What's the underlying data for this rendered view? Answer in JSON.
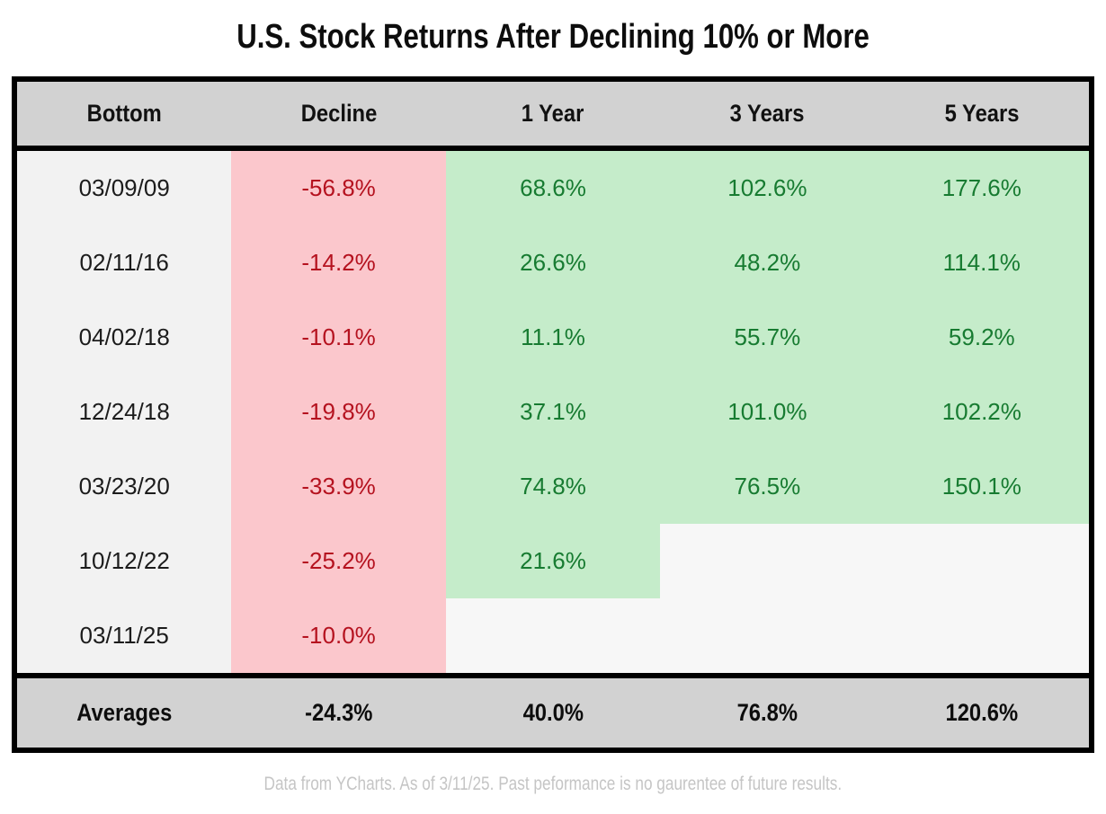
{
  "title": "U.S. Stock Returns After Declining 10% or More",
  "footnote": "Data from YCharts. As of 3/11/25. Past peformance is no gaurentee of future results.",
  "colors": {
    "header_bg": "#d2d2d2",
    "averages_bg": "#d2d2d2",
    "bottom_column_bg": "#f2f2f2",
    "decline_bg": "#fbc7cc",
    "decline_text": "#b5121f",
    "gain_bg": "#c5ecca",
    "gain_text": "#177b31",
    "empty_cell_bg": "#f7f7f7",
    "border": "#000000",
    "footnote_text": "#c5c5c5"
  },
  "chart_data": {
    "type": "table",
    "title": "U.S. Stock Returns After Declining 10% or More",
    "columns": [
      "Bottom",
      "Decline",
      "1 Year",
      "3 Years",
      "5 Years"
    ],
    "rows": [
      {
        "bottom": "03/09/09",
        "decline": "-56.8%",
        "y1": "68.6%",
        "y3": "102.6%",
        "y5": "177.6%"
      },
      {
        "bottom": "02/11/16",
        "decline": "-14.2%",
        "y1": "26.6%",
        "y3": "48.2%",
        "y5": "114.1%"
      },
      {
        "bottom": "04/02/18",
        "decline": "-10.1%",
        "y1": "11.1%",
        "y3": "55.7%",
        "y5": "59.2%"
      },
      {
        "bottom": "12/24/18",
        "decline": "-19.8%",
        "y1": "37.1%",
        "y3": "101.0%",
        "y5": "102.2%"
      },
      {
        "bottom": "03/23/20",
        "decline": "-33.9%",
        "y1": "74.8%",
        "y3": "76.5%",
        "y5": "150.1%"
      },
      {
        "bottom": "10/12/22",
        "decline": "-25.2%",
        "y1": "21.6%",
        "y3": null,
        "y5": null
      },
      {
        "bottom": "03/11/25",
        "decline": "-10.0%",
        "y1": null,
        "y3": null,
        "y5": null
      }
    ],
    "averages": {
      "label": "Averages",
      "decline": "-24.3%",
      "y1": "40.0%",
      "y3": "76.8%",
      "y5": "120.6%"
    }
  }
}
